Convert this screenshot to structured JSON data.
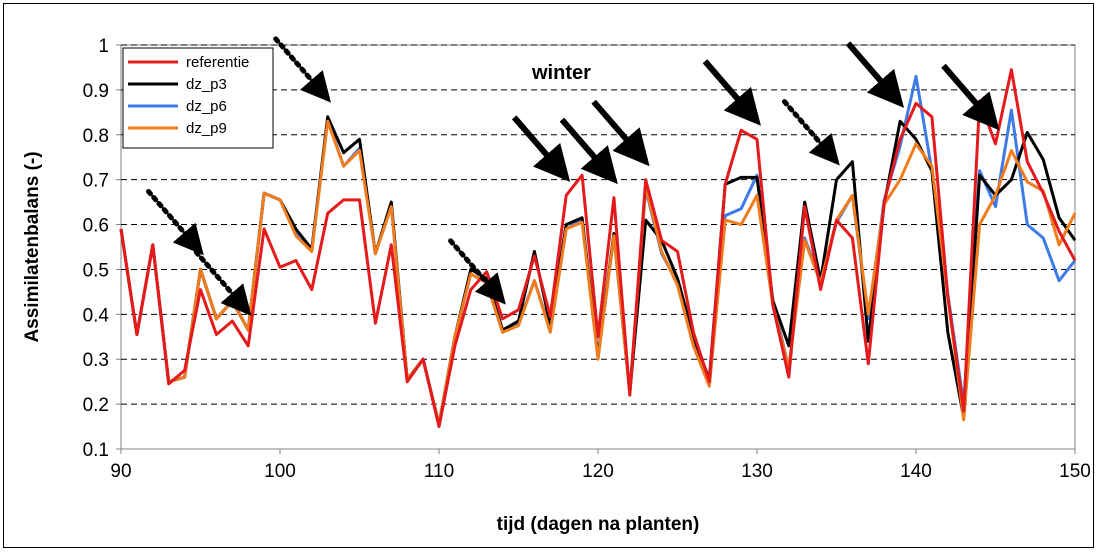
{
  "chart_data": {
    "type": "line",
    "title": "",
    "xlabel": "tijd (dagen na planten)",
    "ylabel": "Assimilatenbalans (-)",
    "xlim": [
      90,
      150
    ],
    "ylim": [
      0.1,
      1.0
    ],
    "xticks": [
      "90",
      "100",
      "110",
      "120",
      "130",
      "140",
      "150"
    ],
    "yticks": [
      "0.1",
      "0.2",
      "0.3",
      "0.4",
      "0.5",
      "0.6",
      "0.7",
      "0.8",
      "0.9",
      "1"
    ],
    "grid": "horizontal dashed",
    "legend_position": "top-left",
    "annotation": "winter",
    "series": [
      {
        "name": "dz_p6",
        "color": "#3d7be6",
        "points": [
          [
            90,
            0.59
          ],
          [
            91,
            0.355
          ],
          [
            92,
            0.555
          ],
          [
            93,
            0.25
          ],
          [
            94,
            0.26
          ],
          [
            95,
            0.5
          ],
          [
            96,
            0.39
          ],
          [
            97,
            0.43
          ],
          [
            98,
            0.365
          ],
          [
            99,
            0.67
          ],
          [
            100,
            0.655
          ],
          [
            101,
            0.585
          ],
          [
            102,
            0.545
          ],
          [
            103,
            0.835
          ],
          [
            104,
            0.73
          ],
          [
            105,
            0.77
          ],
          [
            106,
            0.535
          ],
          [
            107,
            0.645
          ],
          [
            108,
            0.255
          ],
          [
            109,
            0.3
          ],
          [
            110,
            0.155
          ],
          [
            111,
            0.35
          ],
          [
            112,
            0.49
          ],
          [
            113,
            0.47
          ],
          [
            114,
            0.36
          ],
          [
            115,
            0.38
          ],
          [
            116,
            0.475
          ],
          [
            117,
            0.365
          ],
          [
            118,
            0.59
          ],
          [
            119,
            0.61
          ],
          [
            120,
            0.305
          ],
          [
            121,
            0.575
          ],
          [
            122,
            0.225
          ],
          [
            123,
            0.68
          ],
          [
            124,
            0.535
          ],
          [
            125,
            0.47
          ],
          [
            126,
            0.345
          ],
          [
            127,
            0.24
          ],
          [
            128,
            0.62
          ],
          [
            129,
            0.635
          ],
          [
            130,
            0.71
          ],
          [
            131,
            0.43
          ],
          [
            132,
            0.28
          ],
          [
            133,
            0.57
          ],
          [
            134,
            0.475
          ],
          [
            135,
            0.605
          ],
          [
            136,
            0.665
          ],
          [
            137,
            0.39
          ],
          [
            138,
            0.655
          ],
          [
            139,
            0.775
          ],
          [
            140,
            0.93
          ],
          [
            141,
            0.72
          ],
          [
            142,
            0.445
          ],
          [
            143,
            0.2
          ],
          [
            144,
            0.72
          ],
          [
            145,
            0.64
          ],
          [
            146,
            0.855
          ],
          [
            147,
            0.6
          ],
          [
            148,
            0.57
          ],
          [
            149,
            0.475
          ],
          [
            150,
            0.52
          ]
        ]
      },
      {
        "name": "dz_p3",
        "color": "#000000",
        "points": [
          [
            90,
            0.59
          ],
          [
            91,
            0.355
          ],
          [
            92,
            0.555
          ],
          [
            93,
            0.25
          ],
          [
            94,
            0.26
          ],
          [
            95,
            0.5
          ],
          [
            96,
            0.39
          ],
          [
            97,
            0.43
          ],
          [
            98,
            0.365
          ],
          [
            99,
            0.67
          ],
          [
            100,
            0.655
          ],
          [
            101,
            0.59
          ],
          [
            102,
            0.545
          ],
          [
            103,
            0.84
          ],
          [
            104,
            0.76
          ],
          [
            105,
            0.79
          ],
          [
            106,
            0.535
          ],
          [
            107,
            0.65
          ],
          [
            108,
            0.255
          ],
          [
            109,
            0.3
          ],
          [
            110,
            0.155
          ],
          [
            111,
            0.35
          ],
          [
            112,
            0.5
          ],
          [
            113,
            0.48
          ],
          [
            114,
            0.365
          ],
          [
            115,
            0.385
          ],
          [
            116,
            0.54
          ],
          [
            117,
            0.375
          ],
          [
            118,
            0.6
          ],
          [
            119,
            0.615
          ],
          [
            120,
            0.305
          ],
          [
            121,
            0.58
          ],
          [
            122,
            0.225
          ],
          [
            123,
            0.61
          ],
          [
            124,
            0.565
          ],
          [
            125,
            0.48
          ],
          [
            126,
            0.35
          ],
          [
            127,
            0.255
          ],
          [
            128,
            0.69
          ],
          [
            129,
            0.705
          ],
          [
            130,
            0.705
          ],
          [
            131,
            0.43
          ],
          [
            132,
            0.33
          ],
          [
            133,
            0.65
          ],
          [
            134,
            0.475
          ],
          [
            135,
            0.7
          ],
          [
            136,
            0.74
          ],
          [
            137,
            0.34
          ],
          [
            138,
            0.645
          ],
          [
            139,
            0.83
          ],
          [
            140,
            0.79
          ],
          [
            141,
            0.72
          ],
          [
            142,
            0.36
          ],
          [
            143,
            0.17
          ],
          [
            144,
            0.71
          ],
          [
            145,
            0.665
          ],
          [
            146,
            0.7
          ],
          [
            147,
            0.805
          ],
          [
            148,
            0.745
          ],
          [
            149,
            0.615
          ],
          [
            150,
            0.565
          ]
        ]
      },
      {
        "name": "dz_p9",
        "color": "#f07c1e",
        "points": [
          [
            90,
            0.59
          ],
          [
            91,
            0.355
          ],
          [
            92,
            0.555
          ],
          [
            93,
            0.25
          ],
          [
            94,
            0.26
          ],
          [
            95,
            0.5
          ],
          [
            96,
            0.39
          ],
          [
            97,
            0.43
          ],
          [
            98,
            0.365
          ],
          [
            99,
            0.67
          ],
          [
            100,
            0.655
          ],
          [
            101,
            0.575
          ],
          [
            102,
            0.54
          ],
          [
            103,
            0.83
          ],
          [
            104,
            0.73
          ],
          [
            105,
            0.765
          ],
          [
            106,
            0.535
          ],
          [
            107,
            0.64
          ],
          [
            108,
            0.255
          ],
          [
            109,
            0.3
          ],
          [
            110,
            0.155
          ],
          [
            111,
            0.35
          ],
          [
            112,
            0.49
          ],
          [
            113,
            0.47
          ],
          [
            114,
            0.36
          ],
          [
            115,
            0.375
          ],
          [
            116,
            0.475
          ],
          [
            117,
            0.36
          ],
          [
            118,
            0.59
          ],
          [
            119,
            0.605
          ],
          [
            120,
            0.3
          ],
          [
            121,
            0.575
          ],
          [
            122,
            0.225
          ],
          [
            123,
            0.685
          ],
          [
            124,
            0.54
          ],
          [
            125,
            0.465
          ],
          [
            126,
            0.33
          ],
          [
            127,
            0.24
          ],
          [
            128,
            0.61
          ],
          [
            129,
            0.6
          ],
          [
            130,
            0.665
          ],
          [
            131,
            0.42
          ],
          [
            132,
            0.28
          ],
          [
            133,
            0.565
          ],
          [
            134,
            0.47
          ],
          [
            135,
            0.61
          ],
          [
            136,
            0.665
          ],
          [
            137,
            0.4
          ],
          [
            138,
            0.645
          ],
          [
            139,
            0.7
          ],
          [
            140,
            0.78
          ],
          [
            141,
            0.73
          ],
          [
            142,
            0.44
          ],
          [
            143,
            0.165
          ],
          [
            144,
            0.6
          ],
          [
            145,
            0.665
          ],
          [
            146,
            0.765
          ],
          [
            147,
            0.695
          ],
          [
            148,
            0.675
          ],
          [
            149,
            0.555
          ],
          [
            150,
            0.625
          ]
        ]
      },
      {
        "name": "referentie",
        "color": "#e41a1c",
        "points": [
          [
            90,
            0.59
          ],
          [
            91,
            0.355
          ],
          [
            92,
            0.555
          ],
          [
            93,
            0.245
          ],
          [
            94,
            0.275
          ],
          [
            95,
            0.455
          ],
          [
            96,
            0.355
          ],
          [
            97,
            0.385
          ],
          [
            98,
            0.33
          ],
          [
            99,
            0.59
          ],
          [
            100,
            0.505
          ],
          [
            101,
            0.52
          ],
          [
            102,
            0.455
          ],
          [
            103,
            0.625
          ],
          [
            104,
            0.655
          ],
          [
            105,
            0.655
          ],
          [
            106,
            0.38
          ],
          [
            107,
            0.555
          ],
          [
            108,
            0.25
          ],
          [
            109,
            0.3
          ],
          [
            110,
            0.15
          ],
          [
            111,
            0.33
          ],
          [
            112,
            0.455
          ],
          [
            113,
            0.495
          ],
          [
            114,
            0.39
          ],
          [
            115,
            0.41
          ],
          [
            116,
            0.53
          ],
          [
            117,
            0.395
          ],
          [
            118,
            0.665
          ],
          [
            119,
            0.71
          ],
          [
            120,
            0.35
          ],
          [
            121,
            0.66
          ],
          [
            122,
            0.22
          ],
          [
            123,
            0.7
          ],
          [
            124,
            0.565
          ],
          [
            125,
            0.54
          ],
          [
            126,
            0.36
          ],
          [
            127,
            0.25
          ],
          [
            128,
            0.69
          ],
          [
            129,
            0.81
          ],
          [
            130,
            0.79
          ],
          [
            131,
            0.42
          ],
          [
            132,
            0.26
          ],
          [
            133,
            0.64
          ],
          [
            134,
            0.455
          ],
          [
            135,
            0.61
          ],
          [
            136,
            0.57
          ],
          [
            137,
            0.29
          ],
          [
            138,
            0.65
          ],
          [
            139,
            0.79
          ],
          [
            140,
            0.87
          ],
          [
            141,
            0.84
          ],
          [
            142,
            0.44
          ],
          [
            143,
            0.185
          ],
          [
            144,
            0.875
          ],
          [
            145,
            0.78
          ],
          [
            146,
            0.945
          ],
          [
            147,
            0.74
          ],
          [
            148,
            0.67
          ],
          [
            149,
            0.585
          ],
          [
            150,
            0.52
          ]
        ]
      }
    ],
    "legend_order": [
      "referentie",
      "dz_p3",
      "dz_p6",
      "dz_p9"
    ],
    "arrows_solid_at_x": [
      118,
      121,
      123,
      130,
      139,
      145
    ],
    "arrows_dotted_at_x": [
      95,
      98,
      103,
      114,
      135
    ]
  }
}
